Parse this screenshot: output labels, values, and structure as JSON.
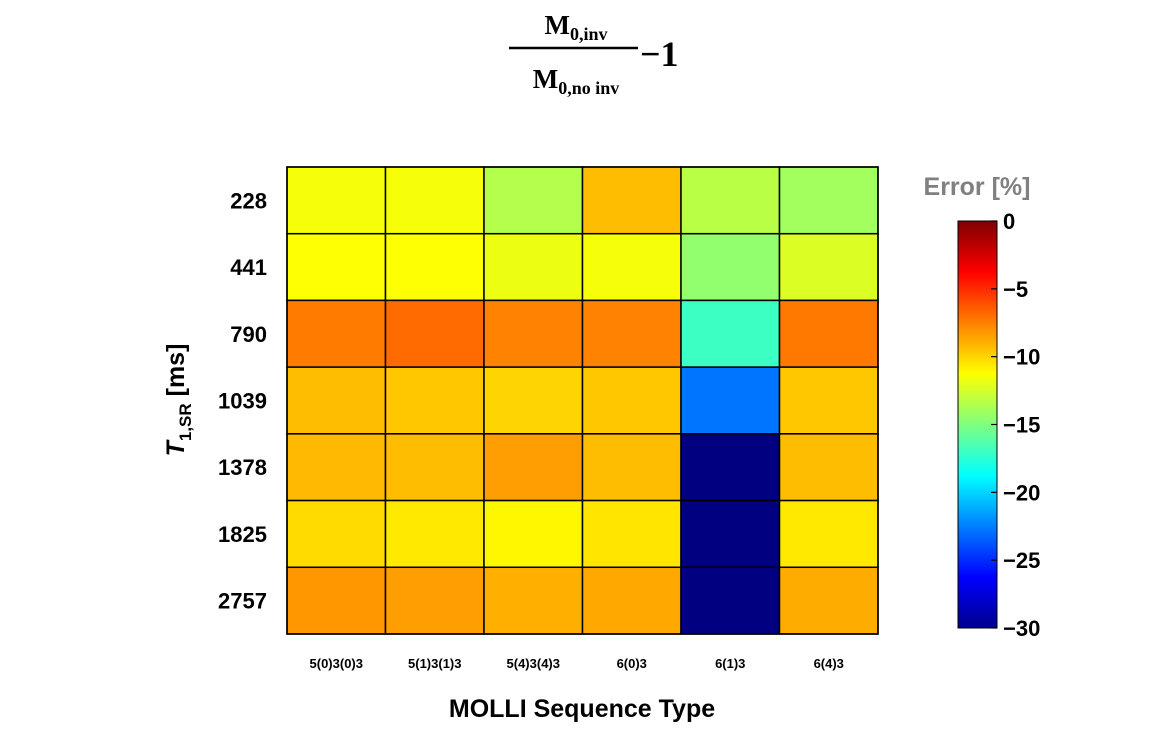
{
  "chart_data": {
    "type": "heatmap",
    "formula": {
      "numerator_main": "M",
      "numerator_sub": "0,inv",
      "denominator_main": "M",
      "denominator_sub": "0,no inv",
      "suffix": "−1"
    },
    "xlabel": "MOLLI Sequence Type",
    "ylabel_main": "T",
    "ylabel_sub": "1,SR",
    "ylabel_unit": " [ms]",
    "x_categories": [
      "5(0)3(0)3",
      "5(1)3(1)3",
      "5(4)3(4)3",
      "6(0)3",
      "6(1)3",
      "6(4)3"
    ],
    "y_categories": [
      "228",
      "441",
      "790",
      "1039",
      "1378",
      "1825",
      "2757"
    ],
    "values": [
      [
        -11.5,
        -11.5,
        -13.5,
        -9.3,
        -13.3,
        -14.0
      ],
      [
        -11.3,
        -11.3,
        -11.8,
        -11.5,
        -14.5,
        -12.3
      ],
      [
        -7.4,
        -6.9,
        -7.6,
        -7.6,
        -17.0,
        -7.3
      ],
      [
        -9.3,
        -9.6,
        -10.0,
        -9.6,
        -22.8,
        -9.6
      ],
      [
        -9.2,
        -9.3,
        -8.4,
        -9.3,
        -30.0,
        -9.3
      ],
      [
        -10.2,
        -10.6,
        -11.0,
        -10.5,
        -30.0,
        -10.6
      ],
      [
        -8.2,
        -8.4,
        -8.9,
        -8.7,
        -30.0,
        -8.8
      ]
    ],
    "colorbar": {
      "title": "Error [%]",
      "range": [
        -30,
        0
      ],
      "ticks": [
        0,
        -5,
        -10,
        -15,
        -20,
        -25,
        -30
      ],
      "tick_labels": [
        "0",
        "−5",
        "−10",
        "−15",
        "−20",
        "−25",
        "−30"
      ]
    }
  }
}
